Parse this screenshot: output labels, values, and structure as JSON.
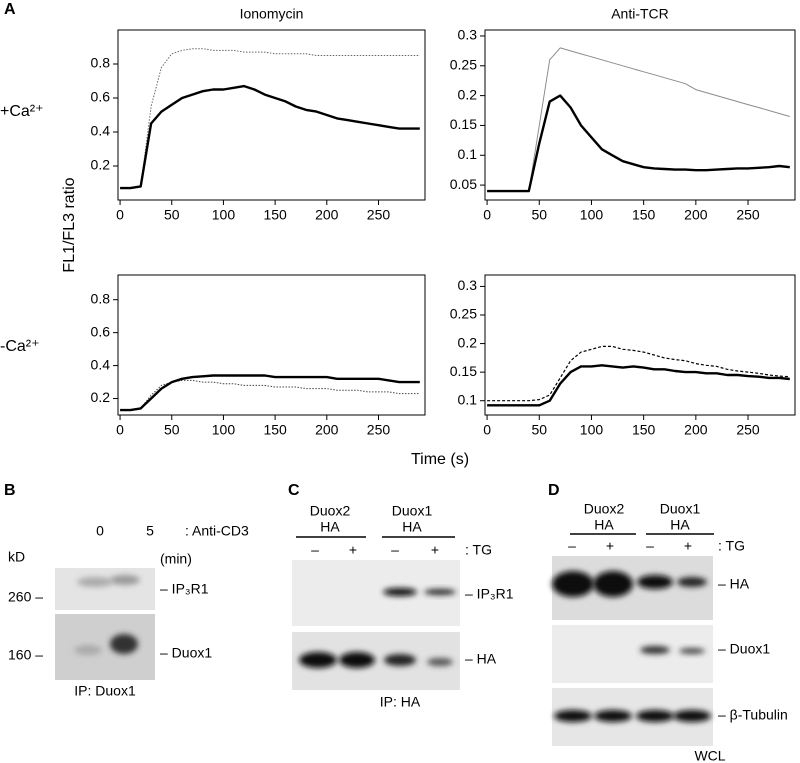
{
  "figure": {
    "panel_a": "A",
    "y_label": "FL1/FL3 ratio",
    "x_label": "Time (s)",
    "row_labels": [
      "+Ca²⁺",
      "-Ca²⁺"
    ]
  },
  "chart_data": [
    {
      "type": "line",
      "title": "Ionomycin",
      "x": [
        0,
        10,
        20,
        30,
        40,
        50,
        60,
        70,
        80,
        90,
        100,
        110,
        120,
        130,
        140,
        150,
        160,
        170,
        180,
        190,
        200,
        210,
        220,
        230,
        240,
        250,
        260,
        270,
        280,
        290
      ],
      "xlim": [
        -2,
        295
      ],
      "xticks": [
        0,
        50,
        100,
        150,
        200,
        250
      ],
      "ylim": [
        0,
        1.0
      ],
      "yticks": [
        0.2,
        0.4,
        0.6,
        0.8
      ],
      "series": [
        {
          "color": "#000000",
          "line_style": "bold",
          "values": [
            0.07,
            0.07,
            0.08,
            0.45,
            0.52,
            0.56,
            0.6,
            0.62,
            0.64,
            0.65,
            0.65,
            0.66,
            0.67,
            0.65,
            0.62,
            0.6,
            0.58,
            0.55,
            0.53,
            0.52,
            0.5,
            0.48,
            0.47,
            0.46,
            0.45,
            0.44,
            0.43,
            0.42,
            0.42,
            0.42
          ]
        },
        {
          "color": "#666666",
          "line_style": "dotted",
          "values": [
            0.07,
            0.07,
            0.08,
            0.55,
            0.78,
            0.86,
            0.88,
            0.89,
            0.89,
            0.88,
            0.88,
            0.88,
            0.87,
            0.87,
            0.87,
            0.86,
            0.86,
            0.86,
            0.86,
            0.85,
            0.85,
            0.85,
            0.85,
            0.85,
            0.85,
            0.85,
            0.85,
            0.85,
            0.85,
            0.85
          ]
        }
      ]
    },
    {
      "type": "line",
      "title": "Anti-TCR",
      "x": [
        0,
        10,
        20,
        30,
        40,
        50,
        60,
        70,
        80,
        90,
        100,
        110,
        120,
        130,
        140,
        150,
        160,
        170,
        180,
        190,
        200,
        210,
        220,
        230,
        240,
        250,
        260,
        270,
        280,
        290
      ],
      "xlim": [
        -2,
        295
      ],
      "xticks": [
        0,
        50,
        100,
        150,
        200,
        250
      ],
      "ylim": [
        0.025,
        0.31
      ],
      "yticks": [
        0.05,
        0.1,
        0.15,
        0.2,
        0.25,
        0.3
      ],
      "series": [
        {
          "color": "#000000",
          "line_style": "bold",
          "values": [
            0.04,
            0.04,
            0.04,
            0.04,
            0.04,
            0.12,
            0.19,
            0.2,
            0.18,
            0.15,
            0.13,
            0.11,
            0.1,
            0.09,
            0.085,
            0.08,
            0.078,
            0.077,
            0.076,
            0.076,
            0.075,
            0.075,
            0.076,
            0.077,
            0.078,
            0.078,
            0.079,
            0.08,
            0.082,
            0.08
          ]
        },
        {
          "color": "#8c8c8c",
          "line_style": "thin",
          "values": [
            0.04,
            0.04,
            0.04,
            0.04,
            0.04,
            0.15,
            0.26,
            0.28,
            0.275,
            0.27,
            0.265,
            0.26,
            0.255,
            0.25,
            0.245,
            0.24,
            0.235,
            0.23,
            0.225,
            0.22,
            0.21,
            0.205,
            0.2,
            0.195,
            0.19,
            0.185,
            0.18,
            0.175,
            0.17,
            0.165
          ]
        }
      ]
    },
    {
      "type": "line",
      "x": [
        0,
        10,
        20,
        30,
        40,
        50,
        60,
        70,
        80,
        90,
        100,
        110,
        120,
        130,
        140,
        150,
        160,
        170,
        180,
        190,
        200,
        210,
        220,
        230,
        240,
        250,
        260,
        270,
        280,
        290
      ],
      "xlim": [
        -2,
        295
      ],
      "xticks": [
        0,
        50,
        100,
        150,
        200,
        250
      ],
      "ylim": [
        0.1,
        0.95
      ],
      "yticks": [
        0.2,
        0.4,
        0.6,
        0.8
      ],
      "series": [
        {
          "color": "#000000",
          "line_style": "bold",
          "values": [
            0.13,
            0.13,
            0.14,
            0.2,
            0.26,
            0.3,
            0.32,
            0.33,
            0.335,
            0.34,
            0.34,
            0.34,
            0.34,
            0.34,
            0.34,
            0.33,
            0.33,
            0.33,
            0.33,
            0.33,
            0.33,
            0.32,
            0.32,
            0.32,
            0.32,
            0.32,
            0.31,
            0.3,
            0.3,
            0.3
          ]
        },
        {
          "color": "#444444",
          "line_style": "dotted",
          "values": [
            0.13,
            0.13,
            0.14,
            0.22,
            0.28,
            0.3,
            0.31,
            0.31,
            0.3,
            0.3,
            0.29,
            0.29,
            0.28,
            0.28,
            0.28,
            0.27,
            0.27,
            0.27,
            0.26,
            0.26,
            0.26,
            0.25,
            0.25,
            0.25,
            0.24,
            0.24,
            0.24,
            0.23,
            0.23,
            0.23
          ]
        }
      ]
    },
    {
      "type": "line",
      "x": [
        0,
        10,
        20,
        30,
        40,
        50,
        60,
        70,
        80,
        90,
        100,
        110,
        120,
        130,
        140,
        150,
        160,
        170,
        180,
        190,
        200,
        210,
        220,
        230,
        240,
        250,
        260,
        270,
        280,
        290
      ],
      "xlim": [
        -2,
        295
      ],
      "xticks": [
        0,
        50,
        100,
        150,
        200,
        250
      ],
      "ylim": [
        0.075,
        0.32
      ],
      "yticks": [
        0.1,
        0.15,
        0.2,
        0.25,
        0.3
      ],
      "series": [
        {
          "color": "#000000",
          "line_style": "bold",
          "values": [
            0.092,
            0.092,
            0.092,
            0.092,
            0.092,
            0.092,
            0.1,
            0.13,
            0.15,
            0.16,
            0.16,
            0.162,
            0.16,
            0.158,
            0.16,
            0.158,
            0.155,
            0.155,
            0.152,
            0.15,
            0.15,
            0.148,
            0.148,
            0.145,
            0.145,
            0.143,
            0.142,
            0.14,
            0.14,
            0.138
          ]
        },
        {
          "color": "#000000",
          "line_style": "dashed",
          "values": [
            0.1,
            0.1,
            0.1,
            0.1,
            0.1,
            0.102,
            0.11,
            0.14,
            0.17,
            0.185,
            0.19,
            0.195,
            0.195,
            0.19,
            0.188,
            0.185,
            0.18,
            0.175,
            0.172,
            0.17,
            0.165,
            0.162,
            0.16,
            0.155,
            0.152,
            0.15,
            0.148,
            0.145,
            0.143,
            0.142
          ]
        }
      ]
    }
  ],
  "panel_b": {
    "label": "B",
    "lanes": [
      "0",
      "5"
    ],
    "treatment": ": Anti-CD3",
    "unit_kd": "kD",
    "unit_time": "(min)",
    "markers": [
      "260 –",
      "160 –"
    ],
    "bands": [
      "– IP₃R1",
      "– Duox1"
    ],
    "caption": "IP: Duox1"
  },
  "panel_c": {
    "label": "C",
    "groups": [
      [
        "Duox2",
        "HA"
      ],
      [
        "Duox1",
        "HA"
      ]
    ],
    "signs": [
      "–",
      "+",
      "–",
      "+"
    ],
    "treatment": ": TG",
    "bands": [
      "– IP₃R1",
      "– HA"
    ],
    "caption": "IP: HA"
  },
  "panel_d": {
    "label": "D",
    "groups": [
      [
        "Duox2",
        "HA"
      ],
      [
        "Duox1",
        "HA"
      ]
    ],
    "signs": [
      "–",
      "+",
      "–",
      "+"
    ],
    "treatment": ": TG",
    "bands": [
      "– HA",
      "– Duox1",
      "– β-Tubulin"
    ],
    "caption": "WCL"
  }
}
